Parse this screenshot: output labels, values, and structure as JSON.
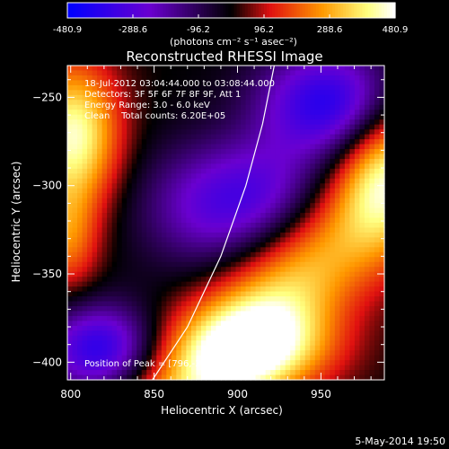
{
  "chart_data": {
    "type": "heatmap",
    "title": "Reconstructed RHESSI Image",
    "xlabel": "Heliocentric X (arcsec)",
    "ylabel": "Heliocentric Y (arcsec)",
    "xlim": [
      798,
      988
    ],
    "ylim": [
      -410,
      -232
    ],
    "x_ticks": [
      800,
      850,
      900,
      950
    ],
    "y_ticks": [
      -250,
      -300,
      -350,
      -400
    ],
    "colorbar": {
      "ticks": [
        "-480.9",
        "-288.6",
        "-96.2",
        "96.2",
        "288.6",
        "480.9"
      ],
      "tick_values": [
        -480.9,
        -288.6,
        -96.2,
        96.2,
        288.6,
        480.9
      ],
      "range": [
        -480.9,
        480.9
      ],
      "unit_label": "(photons cm⁻² s⁻¹ asec⁻²)",
      "colormap": [
        "#0000ff",
        "#6a00d0",
        "#000000",
        "#e01010",
        "#ff9900",
        "#ffff80",
        "#ffffff"
      ]
    },
    "annotations": [
      "18-Jul-2012 03:04:44.000 to 03:08:44.000",
      "Detectors: 3F 5F 6F 7F 8F 9F, Att 1",
      "Energy Range: 3.0 - 6.0 keV",
      "Clean    Total counts: 6.20E+05"
    ],
    "peak_label": "Position of Peak = [796,-260]",
    "limb": [
      [
        849,
        -410
      ],
      [
        870,
        -380
      ],
      [
        890,
        -340
      ],
      [
        905,
        -300
      ],
      [
        915,
        -265
      ],
      [
        922,
        -232
      ]
    ],
    "grid": false
  },
  "footer_date": "5-May-2014 19:50"
}
